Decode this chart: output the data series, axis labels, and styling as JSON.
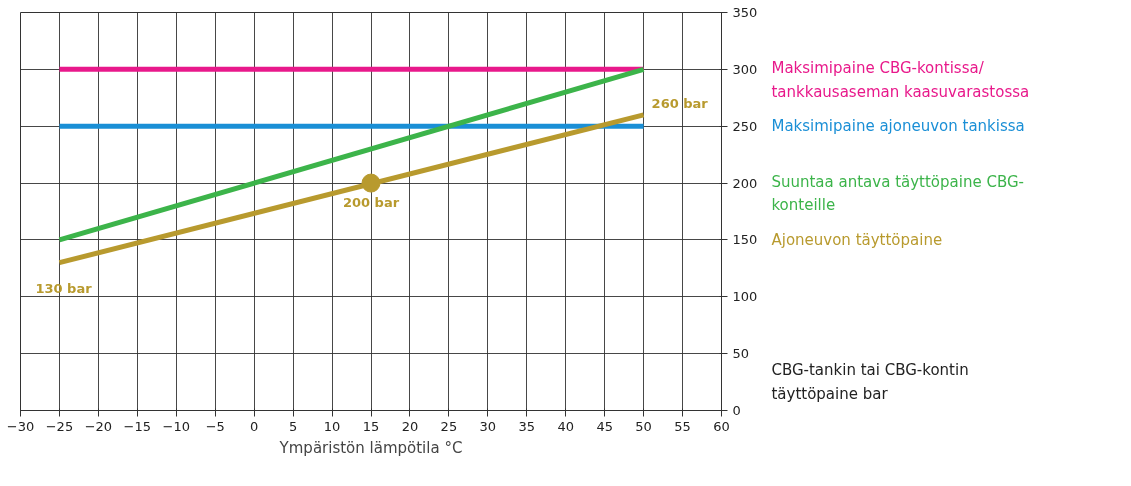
{
  "chart_data": {
    "type": "line",
    "xlabel": "Ympäristön lämpötila °C",
    "ylabel": "CBG-tankin tai CBG-kontin täyttöpaine bar",
    "x": [
      -25,
      50
    ],
    "series": [
      {
        "name": "Maksimipaine CBG-kontissa/ tankkausaseman kaasuvarastossa",
        "color": "#e8198b",
        "values": [
          300,
          300
        ]
      },
      {
        "name": "Maksimipaine ajoneuvon tankissa",
        "color": "#1a8fd6",
        "values": [
          250,
          250
        ]
      },
      {
        "name": "Suuntaa antava täyttöpaine CBG-konteille",
        "color": "#3cb44a",
        "values": [
          150,
          300
        ]
      },
      {
        "name": "Ajoneuvon täyttöpaine",
        "color": "#b89a2e",
        "values": [
          130,
          260
        ]
      },
      {
        "type": "scatter",
        "marker": "circle",
        "color": "#b89a2e",
        "x": [
          15
        ],
        "values": [
          200
        ]
      }
    ],
    "annotations": [
      {
        "text": "130 bar",
        "x": -25,
        "y": 130
      },
      {
        "text": "200 bar",
        "x": 15,
        "y": 200
      },
      {
        "text": "260 bar",
        "x": 50,
        "y": 260
      }
    ],
    "xlim": [
      -30,
      60
    ],
    "xticks": [
      -30,
      -25,
      -20,
      -15,
      -10,
      -5,
      0,
      5,
      10,
      15,
      20,
      25,
      30,
      35,
      40,
      45,
      50,
      55,
      60
    ],
    "ylim": [
      0,
      350
    ],
    "yticks": [
      0,
      50,
      100,
      150,
      200,
      250,
      300,
      350
    ],
    "grid": true,
    "legend": "right",
    "marker": "none",
    "line_style": "solid"
  }
}
